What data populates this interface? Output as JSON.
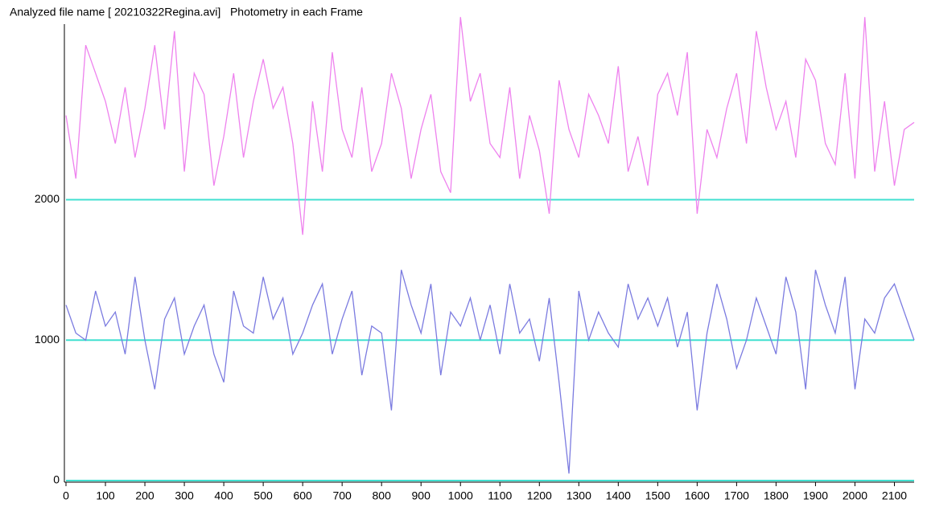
{
  "chart_data": {
    "type": "line",
    "title": "Analyzed file name [ 20210322Regina.avi]   Photometry in each Frame",
    "x": [
      0,
      25,
      50,
      75,
      100,
      125,
      150,
      175,
      200,
      225,
      250,
      275,
      300,
      325,
      350,
      375,
      400,
      425,
      450,
      475,
      500,
      525,
      550,
      575,
      600,
      625,
      650,
      675,
      700,
      725,
      750,
      775,
      800,
      825,
      850,
      875,
      900,
      925,
      950,
      975,
      1000,
      1025,
      1050,
      1075,
      1100,
      1125,
      1150,
      1175,
      1200,
      1225,
      1250,
      1275,
      1300,
      1325,
      1350,
      1375,
      1400,
      1425,
      1450,
      1475,
      1500,
      1525,
      1550,
      1575,
      1600,
      1625,
      1650,
      1675,
      1700,
      1725,
      1750,
      1775,
      1800,
      1825,
      1850,
      1875,
      1900,
      1925,
      1950,
      1975,
      2000,
      2025,
      2050,
      2075,
      2100,
      2125,
      2150
    ],
    "series": [
      {
        "color": "#ee82ee",
        "values": [
          2600,
          2150,
          3100,
          2900,
          2700,
          2400,
          2800,
          2300,
          2650,
          3100,
          2500,
          3200,
          2200,
          2900,
          2750,
          2100,
          2450,
          2900,
          2300,
          2700,
          3000,
          2650,
          2800,
          2400,
          1750,
          2700,
          2200,
          3050,
          2500,
          2300,
          2800,
          2200,
          2400,
          2900,
          2650,
          2150,
          2500,
          2750,
          2200,
          2050,
          3300,
          2700,
          2900,
          2400,
          2300,
          2800,
          2150,
          2600,
          2350,
          1900,
          2850,
          2500,
          2300,
          2750,
          2600,
          2400,
          2950,
          2200,
          2450,
          2100,
          2750,
          2900,
          2600,
          3050,
          1900,
          2500,
          2300,
          2650,
          2900,
          2400,
          3200,
          2800,
          2500,
          2700,
          2300,
          3000,
          2850,
          2400,
          2250,
          2900,
          2150,
          3300,
          2200,
          2700,
          2100,
          2500,
          2550
        ]
      },
      {
        "color": "#7b7be0",
        "values": [
          1250,
          1050,
          1000,
          1350,
          1100,
          1200,
          900,
          1450,
          1000,
          650,
          1150,
          1300,
          900,
          1100,
          1250,
          900,
          700,
          1350,
          1100,
          1050,
          1450,
          1150,
          1300,
          900,
          1050,
          1250,
          1400,
          900,
          1150,
          1350,
          750,
          1100,
          1050,
          500,
          1500,
          1250,
          1050,
          1400,
          750,
          1200,
          1100,
          1300,
          1000,
          1250,
          900,
          1400,
          1050,
          1150,
          850,
          1300,
          700,
          50,
          1350,
          1000,
          1200,
          1050,
          950,
          1400,
          1150,
          1300,
          1100,
          1300,
          950,
          1200,
          500,
          1050,
          1400,
          1150,
          800,
          1000,
          1300,
          1100,
          900,
          1450,
          1200,
          650,
          1500,
          1250,
          1050,
          1450,
          650,
          1150,
          1050,
          1300,
          1400,
          1200,
          1000
        ]
      }
    ],
    "reference_color": "#40e0d0",
    "xlim": [
      0,
      2150
    ],
    "ylim": [
      0,
      3250
    ],
    "xticks": [
      0,
      100,
      200,
      300,
      400,
      500,
      600,
      700,
      800,
      900,
      1000,
      1100,
      1200,
      1300,
      1400,
      1500,
      1600,
      1700,
      1800,
      1900,
      2000,
      2100
    ],
    "yticks": [
      0,
      1000,
      2000
    ],
    "grid": true
  }
}
